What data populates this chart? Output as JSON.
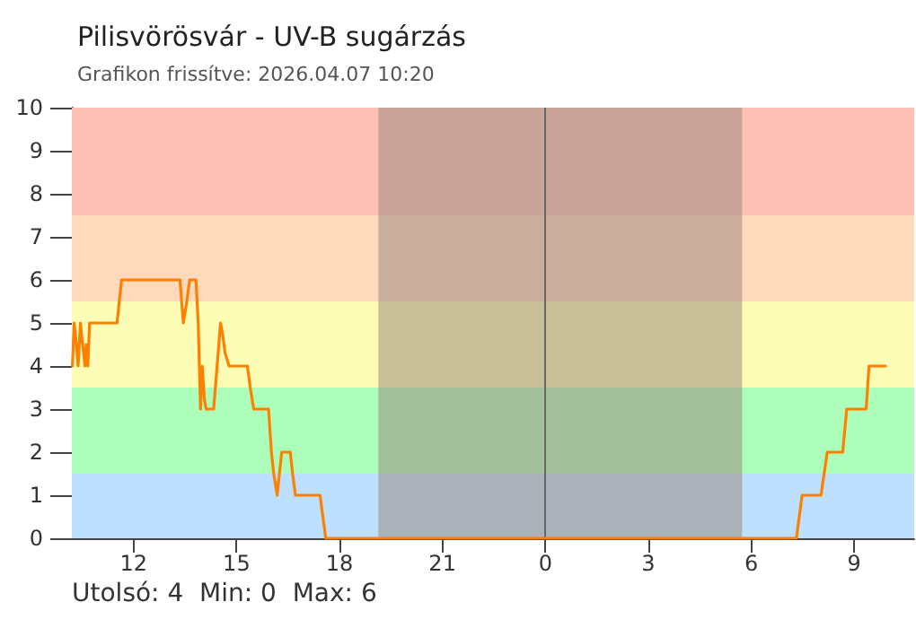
{
  "chart_data": {
    "type": "line",
    "title": "Pilisvörösvár - UV-B sugárzás",
    "subtitle": "Grafikon frissítve: 2026.04.07 10:20",
    "x": [
      "2026-04-06T10:13",
      "2026-04-06T10:16",
      "2026-04-06T10:20",
      "2026-04-06T10:23",
      "2026-04-06T10:27",
      "2026-04-06T10:30",
      "2026-04-06T10:35",
      "2026-04-06T10:37",
      "2026-04-06T10:40",
      "2026-04-06T10:43",
      "2026-04-06T10:47",
      "2026-04-06T10:50",
      "2026-04-06T11:31",
      "2026-04-06T11:35",
      "2026-04-06T11:39",
      "2026-04-06T13:21",
      "2026-04-06T13:24",
      "2026-04-06T13:27",
      "2026-04-06T13:33",
      "2026-04-06T13:38",
      "2026-04-06T13:49",
      "2026-04-06T13:53",
      "2026-04-06T13:57",
      "2026-04-06T14:00",
      "2026-04-06T14:04",
      "2026-04-06T14:07",
      "2026-04-06T14:10",
      "2026-04-06T14:20",
      "2026-04-06T14:26",
      "2026-04-06T14:32",
      "2026-04-06T14:36",
      "2026-04-06T14:40",
      "2026-04-06T14:47",
      "2026-04-06T15:19",
      "2026-04-06T15:24",
      "2026-04-06T15:30",
      "2026-04-06T15:56",
      "2026-04-06T16:01",
      "2026-04-06T16:05",
      "2026-04-06T16:11",
      "2026-04-06T16:19",
      "2026-04-06T16:34",
      "2026-04-06T16:38",
      "2026-04-06T16:43",
      "2026-04-06T17:26",
      "2026-04-06T17:31",
      "2026-04-06T17:36",
      "2026-04-07T07:19",
      "2026-04-07T07:29",
      "2026-04-07T08:02",
      "2026-04-07T08:13",
      "2026-04-07T08:40",
      "2026-04-07T08:47",
      "2026-04-07T09:21",
      "2026-04-07T09:26",
      "2026-04-07T09:55"
    ],
    "series": [
      {
        "color": "#ff8000",
        "values": [
          4,
          5,
          4.5,
          4,
          5,
          4.6,
          4,
          4.5,
          4,
          5,
          5,
          5,
          5,
          5.5,
          6,
          6,
          5.5,
          5,
          5.5,
          6,
          6,
          5,
          3,
          4,
          3.2,
          3,
          3,
          3,
          4,
          5,
          4.7,
          4.3,
          4,
          4,
          3.5,
          3,
          3,
          2,
          1.5,
          1,
          2,
          2,
          1.5,
          1,
          1,
          0.5,
          0,
          0,
          1,
          1,
          2,
          2,
          3,
          3,
          4,
          4
        ]
      }
    ],
    "xlim": [
      "2026-04-06T10:12",
      "2026-04-07T10:45"
    ],
    "ylim": [
      0,
      10
    ],
    "xticks": [
      {
        "value": "2026-04-06T12:00",
        "label": "12"
      },
      {
        "value": "2026-04-06T15:00",
        "label": "15"
      },
      {
        "value": "2026-04-06T18:00",
        "label": "18"
      },
      {
        "value": "2026-04-06T21:00",
        "label": "21"
      },
      {
        "value": "2026-04-07T00:00",
        "label": "0"
      },
      {
        "value": "2026-04-07T03:00",
        "label": "3"
      },
      {
        "value": "2026-04-07T06:00",
        "label": "6"
      },
      {
        "value": "2026-04-07T09:00",
        "label": "9"
      }
    ],
    "yticks": [
      0,
      1,
      2,
      3,
      4,
      5,
      6,
      7,
      8,
      9,
      10
    ],
    "bands": [
      {
        "axis": "y",
        "from": 0,
        "to": 1.5,
        "color": "#bde0fe"
      },
      {
        "axis": "y",
        "from": 1.5,
        "to": 3.5,
        "color": "#adfebb"
      },
      {
        "axis": "y",
        "from": 3.5,
        "to": 5.5,
        "color": "#fefdb6"
      },
      {
        "axis": "y",
        "from": 5.5,
        "to": 7.5,
        "color": "#fed9bc"
      },
      {
        "axis": "y",
        "from": 7.5,
        "to": 10,
        "color": "#fec0b5"
      },
      {
        "axis": "x",
        "from": "2026-04-06T19:08",
        "to": "2026-04-07T05:44",
        "color": "#9a8a80"
      }
    ],
    "ref_lines": [
      {
        "axis": "x",
        "value": "2026-04-07T00:00",
        "color": "#666666"
      }
    ],
    "annotations": [
      "Utolsó: 4",
      "Min: 0",
      "Max: 6"
    ],
    "marker": "none",
    "line_style": "solid"
  }
}
